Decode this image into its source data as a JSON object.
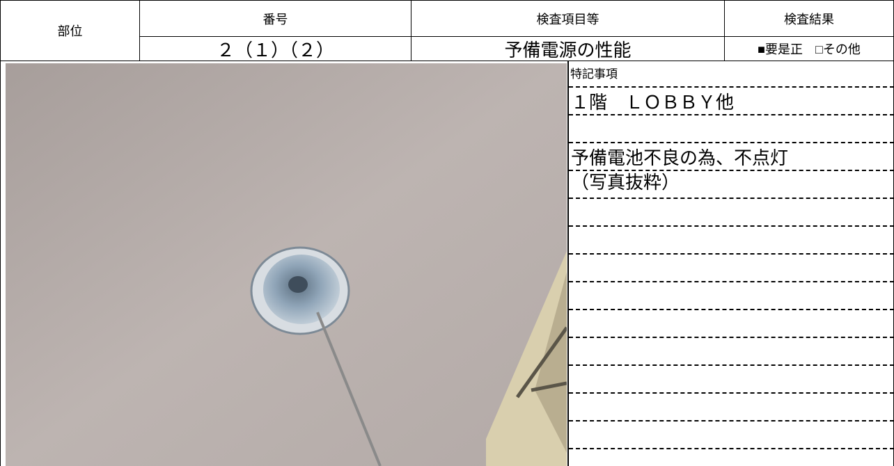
{
  "header": {
    "location_label": "部位",
    "number_label": "番号",
    "item_label": "検査項目等",
    "result_label": "検査結果",
    "number": "２（１）（２）",
    "item": "予備電源の性能",
    "result": "■要是正　□その他"
  },
  "notes": {
    "label": "特記事項",
    "lines": [
      "１階　ＬＯＢＢＹ他",
      "予備電池不良の為、不点灯",
      "（写真抜粋）"
    ]
  }
}
